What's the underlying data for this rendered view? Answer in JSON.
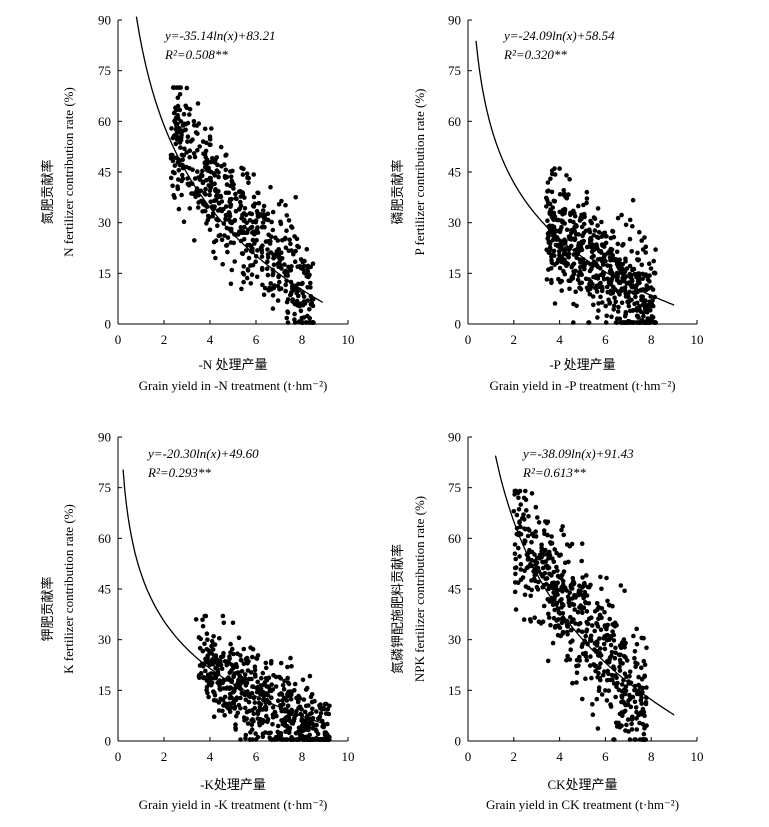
{
  "chart_data": [
    {
      "type": "scatter",
      "xlabel_cn": "-N 处理产量",
      "xlabel_en": "Grain yield in -N treatment (t·hm⁻²)",
      "ylabel_cn": "氮肥贡献率",
      "ylabel_en": "N fertilizer contribution rate (%)",
      "equation": "y=-35.14ln(x)+83.21",
      "r2": "R²=0.508**",
      "fit": {
        "a": -35.14,
        "b": 83.21,
        "x_range": [
          0.8,
          8.9
        ]
      },
      "xlim": [
        0,
        10
      ],
      "ylim": [
        0,
        90
      ],
      "xticks": [
        "0",
        "2",
        "4",
        "6",
        "8",
        "10"
      ],
      "yticks": [
        "0",
        "15",
        "30",
        "45",
        "60",
        "75",
        "90"
      ],
      "cloud": {
        "x_min": 2.3,
        "x_max": 8.5,
        "count": 600,
        "slope": -8.0,
        "intercept": 74,
        "sd": 9,
        "ymax": 70,
        "seed": 11
      },
      "points": [
        [
          2.4,
          70
        ],
        [
          2.6,
          67
        ],
        [
          2.7,
          68
        ],
        [
          3.1,
          62
        ],
        [
          3.3,
          60
        ],
        [
          2.6,
          40
        ]
      ]
    },
    {
      "type": "scatter",
      "xlabel_cn": "-P 处理产量",
      "xlabel_en": "Grain yield in -P treatment (t·hm⁻²)",
      "ylabel_cn": "磷肥贡献率",
      "ylabel_en": "P fertilizer contribution rate (%)",
      "equation": "y=-24.09ln(x)+58.54",
      "r2": "R²=0.320**",
      "fit": {
        "a": -24.09,
        "b": 58.54,
        "x_range": [
          0.35,
          9.0
        ]
      },
      "xlim": [
        0,
        10
      ],
      "ylim": [
        0,
        90
      ],
      "xticks": [
        "0",
        "2",
        "4",
        "6",
        "8",
        "10"
      ],
      "yticks": [
        "0",
        "15",
        "30",
        "45",
        "60",
        "75",
        "90"
      ],
      "cloud": {
        "x_min": 3.4,
        "x_max": 8.2,
        "count": 650,
        "slope": -5.5,
        "intercept": 49,
        "sd": 8,
        "ymax": 46,
        "seed": 23
      },
      "points": [
        [
          4.0,
          46
        ],
        [
          3.6,
          43
        ],
        [
          4.3,
          44
        ],
        [
          3.5,
          36
        ]
      ]
    },
    {
      "type": "scatter",
      "xlabel_cn": "-K处理产量",
      "xlabel_en": "Grain yield in -K treatment (t·hm⁻²)",
      "ylabel_cn": "钾肥贡献率",
      "ylabel_en": "K fertilizer contribution rate (%)",
      "equation": "y=-20.30ln(x)+49.60",
      "r2": "R²=0.293**",
      "fit": {
        "a": -20.3,
        "b": 49.6,
        "x_range": [
          0.22,
          9.0
        ]
      },
      "xlim": [
        0,
        10
      ],
      "ylim": [
        0,
        90
      ],
      "xticks": [
        "0",
        "2",
        "4",
        "6",
        "8",
        "10"
      ],
      "yticks": [
        "0",
        "15",
        "30",
        "45",
        "60",
        "75",
        "90"
      ],
      "cloud": {
        "x_min": 3.5,
        "x_max": 9.2,
        "count": 600,
        "slope": -4.2,
        "intercept": 38,
        "sd": 6.5,
        "ymax": 37,
        "seed": 37
      },
      "points": [
        [
          3.4,
          36
        ],
        [
          3.7,
          34
        ],
        [
          4.6,
          35
        ],
        [
          5.0,
          35
        ],
        [
          9.1,
          5
        ]
      ]
    },
    {
      "type": "scatter",
      "xlabel_cn": "CK处理产量",
      "xlabel_en": "Grain yield in CK treatment (t·hm⁻²)",
      "ylabel_cn": "氮磷钾配施肥料贡献率",
      "ylabel_en": "NPK fertilizer contribution rate (%)",
      "equation": "y=-38.09ln(x)+91.43",
      "r2": "R²=0.613**",
      "fit": {
        "a": -38.09,
        "b": 91.43,
        "x_range": [
          1.2,
          9.0
        ]
      },
      "xlim": [
        0,
        10
      ],
      "ylim": [
        0,
        90
      ],
      "xticks": [
        "0",
        "2",
        "4",
        "6",
        "8",
        "10"
      ],
      "yticks": [
        "0",
        "15",
        "30",
        "45",
        "60",
        "75",
        "90"
      ],
      "cloud": {
        "x_min": 2.0,
        "x_max": 7.8,
        "count": 600,
        "slope": -9.0,
        "intercept": 80,
        "sd": 9.5,
        "ymax": 74,
        "seed": 53
      },
      "points": [
        [
          2.1,
          74
        ],
        [
          2.2,
          72
        ],
        [
          2.3,
          70
        ],
        [
          2.0,
          68
        ],
        [
          2.4,
          66
        ]
      ]
    }
  ]
}
